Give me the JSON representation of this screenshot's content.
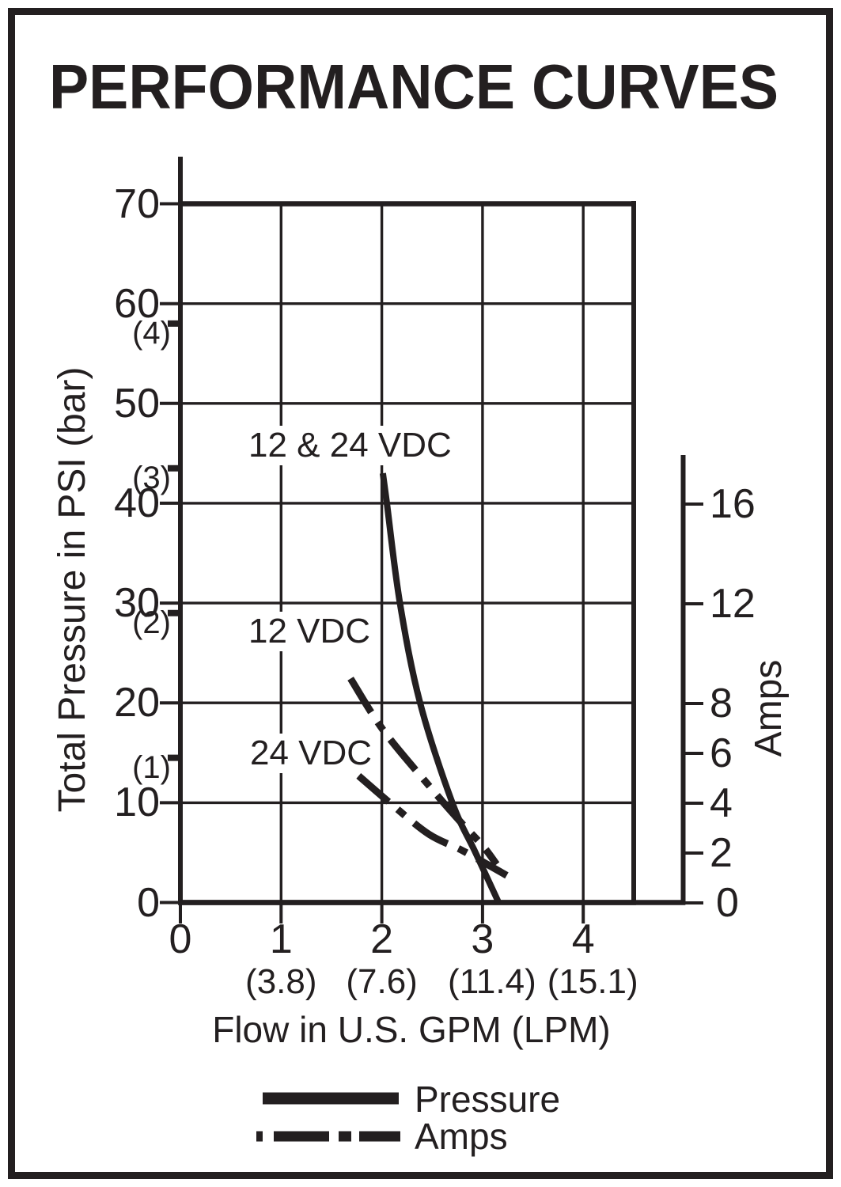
{
  "title": "PERFORMANCE CURVES",
  "colors": {
    "ink": "#231f20",
    "background": "#ffffff"
  },
  "chart_data": {
    "type": "line",
    "title": "PERFORMANCE CURVES",
    "grid": true,
    "x_axis": {
      "label": "Flow in U.S. GPM (LPM)",
      "ticks_gpm": [
        0,
        1,
        2,
        3,
        4
      ],
      "ticks_lpm": [
        "(3.8)",
        "(7.6)",
        "(11.4)",
        "(15.1)"
      ],
      "range_gpm": [
        0,
        4.5
      ]
    },
    "y_axis_left": {
      "label": "Total Pressure in PSI (bar)",
      "ticks_psi": [
        0,
        10,
        20,
        30,
        40,
        50,
        60,
        70
      ],
      "ticks_bar": [
        {
          "label": "(1)",
          "psi": 14.5
        },
        {
          "label": "(2)",
          "psi": 29.0
        },
        {
          "label": "(3)",
          "psi": 43.5
        },
        {
          "label": "(4)",
          "psi": 58.0
        }
      ],
      "range_psi": [
        0,
        70
      ]
    },
    "y_axis_right": {
      "label": "Amps",
      "ticks": [
        0,
        2,
        4,
        6,
        8,
        12,
        16
      ],
      "range": [
        0,
        18
      ]
    },
    "series": [
      {
        "name": "pressure-12-and-24-vdc",
        "label": "12 & 24 VDC",
        "axis": "left",
        "style": "solid",
        "units": "GPM, PSI",
        "points": [
          [
            2.01,
            43
          ],
          [
            2.05,
            40
          ],
          [
            2.18,
            30
          ],
          [
            2.38,
            20
          ],
          [
            2.7,
            10
          ],
          [
            2.93,
            5
          ],
          [
            3.16,
            0
          ]
        ]
      },
      {
        "name": "amps-12-vdc",
        "label": "12 VDC",
        "axis": "right",
        "style": "dashdot",
        "units": "GPM, Amps",
        "points": [
          [
            1.69,
            9.0
          ],
          [
            2.02,
            6.9
          ],
          [
            2.49,
            4.6
          ],
          [
            2.77,
            3.3
          ],
          [
            3.0,
            2.3
          ],
          [
            3.14,
            1.55
          ]
        ]
      },
      {
        "name": "amps-24-vdc",
        "label": "24 VDC",
        "axis": "right",
        "style": "dashdot",
        "units": "GPM, Amps",
        "points": [
          [
            1.77,
            5.1
          ],
          [
            2.1,
            3.95
          ],
          [
            2.47,
            2.75
          ],
          [
            2.8,
            2.1
          ],
          [
            3.24,
            1.1
          ]
        ]
      }
    ],
    "legend": [
      {
        "label": "Pressure",
        "style": "solid"
      },
      {
        "label": "Amps",
        "style": "dashdot"
      }
    ],
    "legend_position": "bottom"
  }
}
